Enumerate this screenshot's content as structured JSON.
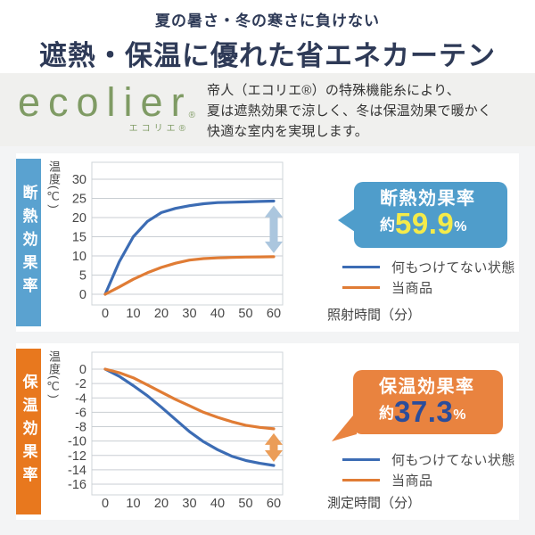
{
  "header": {
    "subtitle": "夏の暑さ・冬の寒さに負けない",
    "title": "遮熱・保温に優れた省エネカーテン"
  },
  "intro": {
    "brand": {
      "name": "ecolier",
      "reg_mark": "®",
      "kana": "エコリエ®",
      "color": "#7f9b64"
    },
    "description_lines": [
      "帝人（エコリエ®）の特殊機能糸により、",
      "夏は遮熱効果で涼しく、冬は保温効果で暖かく",
      "快適な室内を実現します。"
    ]
  },
  "sections": [
    {
      "side_label": "断熱効果率",
      "side_color": "#5aa2d0",
      "callout": {
        "title": "断熱効果率",
        "prefix": "約",
        "value": "59.9",
        "unit": "%",
        "bg": "#4f9dcb",
        "value_color": "#f4eb4a"
      }
    },
    {
      "side_label": "保温効果率",
      "side_color": "#e8781e",
      "callout": {
        "title": "保温効果率",
        "prefix": "約",
        "value": "37.3",
        "unit": "%",
        "bg": "#e9833f",
        "value_color": "#2b4d9b"
      }
    }
  ],
  "chart_data": [
    {
      "type": "line",
      "title": "断熱効果率",
      "ylabel": "温度(℃)",
      "xlabel": "照射時間（分）",
      "ylim": [
        0,
        30
      ],
      "yticks": [
        0,
        5,
        10,
        15,
        20,
        25,
        30
      ],
      "xticks": [
        0,
        10,
        20,
        30,
        40,
        50,
        60
      ],
      "grid": true,
      "legend_position": "right",
      "x": [
        0,
        5,
        10,
        15,
        20,
        25,
        30,
        35,
        40,
        45,
        50,
        55,
        60
      ],
      "series": [
        {
          "name": "何もつけてない状態",
          "color": "#3c6cb4",
          "values": [
            0,
            8.5,
            15,
            19,
            21.3,
            22.4,
            23.1,
            23.6,
            23.9,
            24.0,
            24.1,
            24.2,
            24.3
          ]
        },
        {
          "name": "当商品",
          "color": "#e07c35",
          "values": [
            0,
            1.9,
            3.9,
            5.6,
            7.0,
            8.1,
            8.9,
            9.3,
            9.5,
            9.6,
            9.7,
            9.75,
            9.8
          ]
        }
      ],
      "arrow": {
        "at_x": 60,
        "from": 24.3,
        "to": 9.8,
        "color": "#abc6de"
      },
      "annotation": "断熱効果率 約59.9%"
    },
    {
      "type": "line",
      "title": "保温効果率",
      "ylabel": "温度(℃)",
      "xlabel": "測定時間（分）",
      "ylim": [
        -16,
        0
      ],
      "yticks": [
        0,
        -2,
        -4,
        -6,
        -8,
        -10,
        -12,
        -14,
        -16
      ],
      "xticks": [
        0,
        10,
        20,
        30,
        40,
        50,
        60
      ],
      "grid": true,
      "legend_position": "right",
      "x": [
        0,
        5,
        10,
        15,
        20,
        25,
        30,
        35,
        40,
        45,
        50,
        55,
        60
      ],
      "series": [
        {
          "name": "何もつけてない状態",
          "color": "#3c6cb4",
          "values": [
            0,
            -1.0,
            -2.3,
            -3.7,
            -5.3,
            -7.0,
            -8.7,
            -10.1,
            -11.2,
            -12.1,
            -12.7,
            -13.1,
            -13.4
          ]
        },
        {
          "name": "当商品",
          "color": "#e07c35",
          "values": [
            0,
            -0.5,
            -1.2,
            -2.2,
            -3.2,
            -4.2,
            -5.1,
            -6.0,
            -6.7,
            -7.3,
            -7.8,
            -8.1,
            -8.3
          ]
        }
      ],
      "arrow": {
        "at_x": 60,
        "from": -8.3,
        "to": -13.4,
        "color": "#eb9d58"
      },
      "annotation": "保温効果率 約37.3%"
    }
  ]
}
